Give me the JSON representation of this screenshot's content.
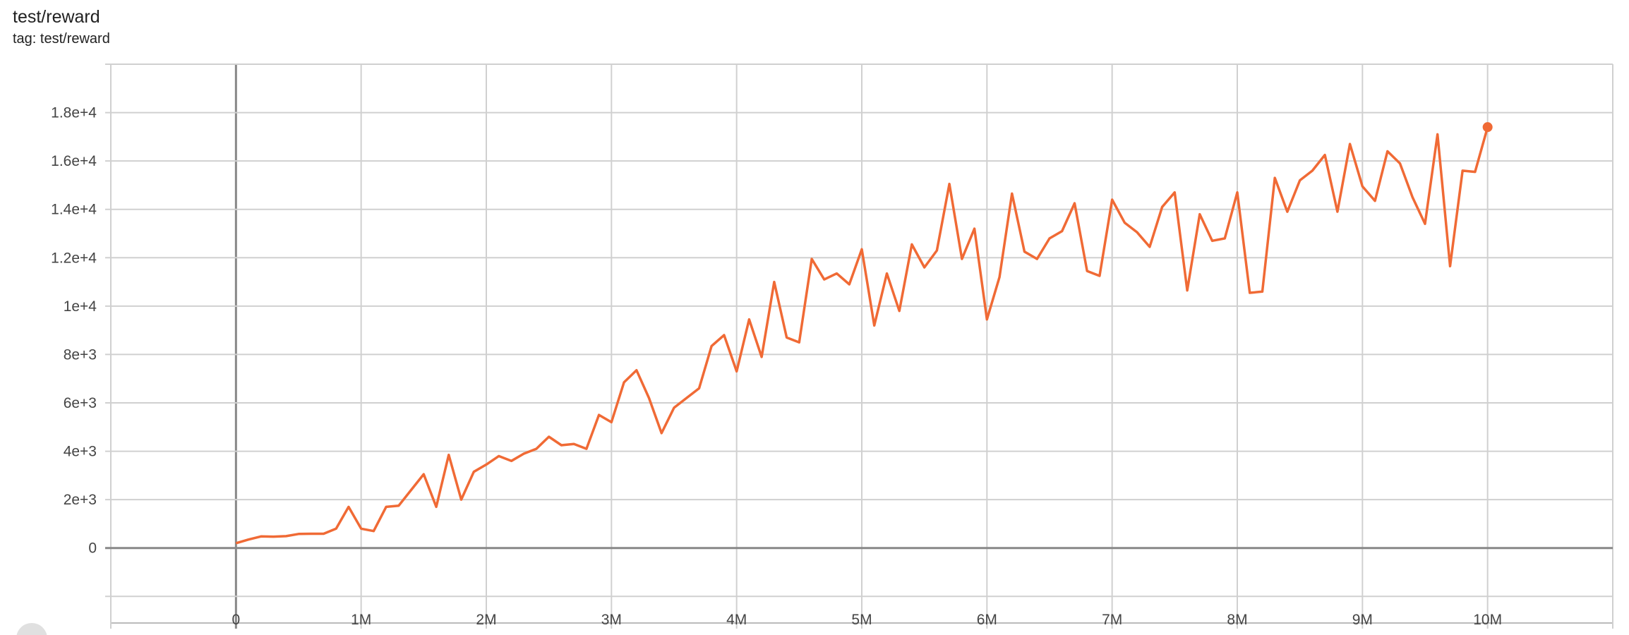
{
  "header": {
    "title": "test/reward",
    "tag": "tag: test/reward"
  },
  "chart_data": {
    "type": "line",
    "title": "test/reward",
    "xlabel": "",
    "ylabel": "",
    "xlim": [
      -1000000,
      11000000
    ],
    "ylim": [
      -3100,
      20000
    ],
    "grid": true,
    "x_ticks": [
      0,
      1000000,
      2000000,
      3000000,
      4000000,
      5000000,
      6000000,
      7000000,
      8000000,
      9000000,
      10000000
    ],
    "x_tick_labels": [
      "0",
      "1M",
      "2M",
      "3M",
      "4M",
      "5M",
      "6M",
      "7M",
      "8M",
      "9M",
      "10M"
    ],
    "y_ticks": [
      0,
      2000,
      4000,
      6000,
      8000,
      10000,
      12000,
      14000,
      16000,
      18000
    ],
    "y_tick_labels": [
      "0",
      "2e+3",
      "4e+3",
      "6e+3",
      "8e+3",
      "1e+4",
      "1.2e+4",
      "1.4e+4",
      "1.6e+4",
      "1.8e+4"
    ],
    "series": [
      {
        "color": "#f06a35",
        "x_step": 100000,
        "values": [
          200,
          350,
          480,
          470,
          490,
          580,
          590,
          590,
          800,
          1700,
          800,
          700,
          1700,
          1750,
          2400,
          3050,
          1700,
          3850,
          2000,
          3150,
          3450,
          3800,
          3600,
          3900,
          4100,
          4600,
          4250,
          4300,
          4100,
          5500,
          5200,
          6850,
          7350,
          6200,
          4750,
          5800,
          6200,
          6600,
          8350,
          8800,
          7300,
          9450,
          7900,
          11000,
          8700,
          8500,
          11950,
          11100,
          11350,
          10900,
          12350,
          9200,
          11350,
          9800,
          12550,
          11600,
          12300,
          15050,
          11950,
          13200,
          9450,
          11200,
          14650,
          12250,
          11950,
          12800,
          13100,
          14250,
          11450,
          11250,
          14400,
          13450,
          13050,
          12450,
          14100,
          14700,
          10650,
          13800,
          12700,
          12800,
          14700,
          10550,
          10600,
          15300,
          13900,
          15200,
          15600,
          16250,
          13900,
          16700,
          14950,
          14350,
          16400,
          15900,
          14500,
          13400,
          17100,
          11650,
          15600,
          15550,
          17400
        ]
      }
    ]
  }
}
